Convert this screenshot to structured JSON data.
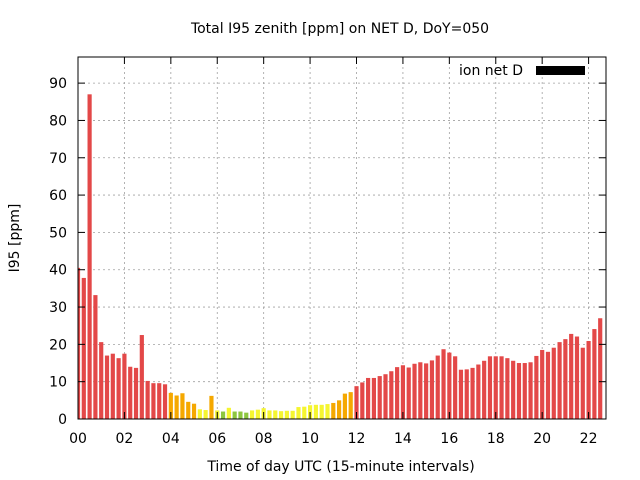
{
  "chart_data": {
    "type": "bar",
    "title": "Total I95 zenith [ppm] on NET D, DoY=050",
    "xlabel": "Time of day UTC (15-minute intervals)",
    "ylabel": "I95 [ppm]",
    "legend": {
      "label": "ion net D",
      "position": "top-right",
      "swatch_color": "#000000"
    },
    "grid": true,
    "xlim": [
      0,
      22.75
    ],
    "ylim": [
      0,
      97
    ],
    "x_ticks": [
      "00",
      "02",
      "04",
      "06",
      "08",
      "10",
      "12",
      "14",
      "16",
      "18",
      "20",
      "22"
    ],
    "y_ticks": [
      "0",
      "10",
      "20",
      "30",
      "40",
      "50",
      "60",
      "70",
      "80",
      "90"
    ],
    "interval_hours": 0.25,
    "values": [
      40.5,
      37.8,
      87.0,
      33.2,
      20.6,
      17.0,
      17.5,
      16.3,
      17.5,
      14.0,
      13.7,
      22.5,
      10.2,
      9.6,
      9.6,
      9.3,
      7.0,
      6.3,
      6.9,
      4.6,
      4.1,
      2.6,
      2.4,
      6.2,
      2.3,
      2.0,
      3.0,
      2.0,
      2.0,
      1.7,
      2.3,
      2.5,
      2.9,
      2.3,
      2.3,
      2.1,
      2.2,
      2.2,
      3.2,
      3.3,
      3.7,
      3.8,
      3.8,
      4.0,
      4.3,
      5.0,
      6.8,
      7.2,
      8.8,
      9.8,
      11.0,
      11.0,
      11.5,
      12.0,
      12.8,
      13.9,
      14.4,
      13.8,
      14.8,
      15.2,
      14.9,
      15.7,
      17.0,
      18.7,
      17.8,
      16.8,
      13.2,
      13.3,
      13.7,
      14.6,
      15.6,
      16.8,
      16.8,
      16.8,
      16.3,
      15.6,
      15.0,
      15.0,
      15.2,
      16.9,
      18.5,
      18.0,
      19.1,
      20.6,
      21.4,
      22.8,
      22.1,
      19.1,
      20.9,
      24.1,
      27.0
    ],
    "color_scale": [
      {
        "max": 2,
        "color": "#8dc63f"
      },
      {
        "max": 4,
        "color": "#f5f530"
      },
      {
        "max": 8,
        "color": "#f5a800"
      },
      {
        "max": 1000,
        "color": "#e34848"
      }
    ]
  }
}
